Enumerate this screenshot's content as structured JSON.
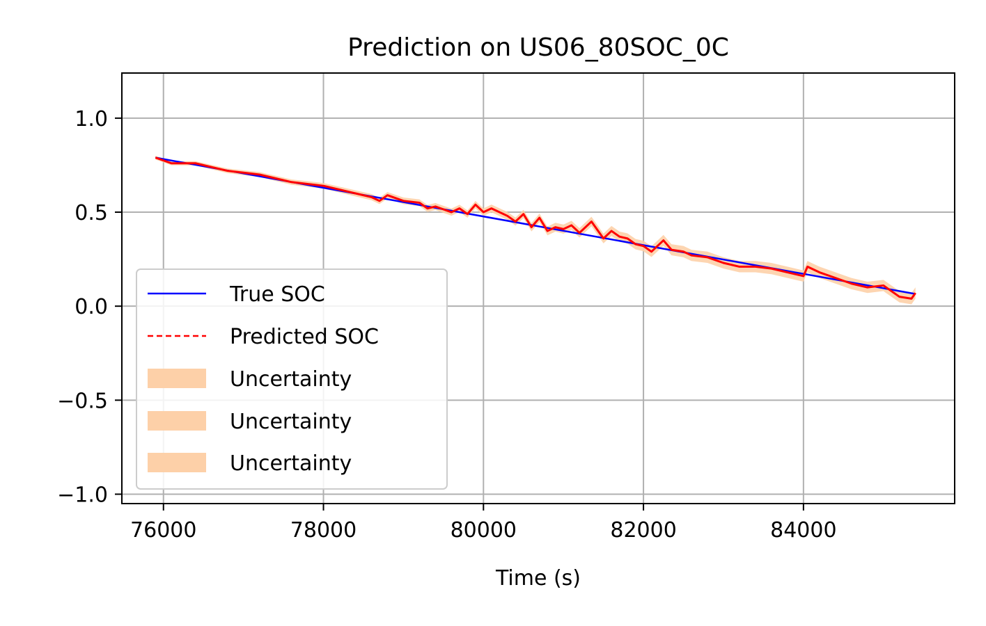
{
  "chart_data": {
    "type": "line",
    "title": "Prediction on US06_80SOC_0C",
    "xlabel": "Time (s)",
    "ylabel": "",
    "xlim": [
      75480,
      85890
    ],
    "ylim": [
      -1.05,
      1.24
    ],
    "xticks": [
      76000,
      78000,
      80000,
      82000,
      84000
    ],
    "xtick_labels": [
      "76000",
      "78000",
      "80000",
      "82000",
      "84000"
    ],
    "yticks": [
      1.0,
      0.5,
      0.0,
      -0.5,
      -1.0
    ],
    "ytick_labels": [
      "1.0",
      "0.5",
      "0.0",
      "−0.5",
      "−1.0"
    ],
    "grid": true,
    "legend_position": "lower-left",
    "series": [
      {
        "name": "True SOC",
        "style": "solid",
        "color": "#0000ff",
        "x": [
          75900,
          85400
        ],
        "y": [
          0.79,
          0.065
        ]
      },
      {
        "name": "Predicted SOC",
        "style": "dashed",
        "color": "#ff0000",
        "x": [
          75900,
          76100,
          76300,
          76400,
          76600,
          76800,
          77000,
          77200,
          77400,
          77600,
          77800,
          78000,
          78200,
          78400,
          78600,
          78700,
          78800,
          79000,
          79200,
          79300,
          79400,
          79600,
          79700,
          79800,
          79900,
          80000,
          80100,
          80300,
          80400,
          80500,
          80600,
          80700,
          80800,
          80900,
          81000,
          81100,
          81200,
          81350,
          81500,
          81600,
          81700,
          81800,
          81900,
          82000,
          82100,
          82250,
          82350,
          82500,
          82600,
          82800,
          83000,
          83200,
          83400,
          83600,
          83800,
          84000,
          84050,
          84200,
          84400,
          84600,
          84800,
          85000,
          85200,
          85350,
          85400
        ],
        "y": [
          0.79,
          0.76,
          0.76,
          0.76,
          0.74,
          0.72,
          0.71,
          0.7,
          0.68,
          0.66,
          0.65,
          0.64,
          0.62,
          0.6,
          0.58,
          0.56,
          0.59,
          0.56,
          0.55,
          0.52,
          0.53,
          0.5,
          0.52,
          0.49,
          0.54,
          0.5,
          0.52,
          0.48,
          0.45,
          0.49,
          0.42,
          0.47,
          0.4,
          0.42,
          0.41,
          0.43,
          0.39,
          0.45,
          0.36,
          0.4,
          0.37,
          0.36,
          0.33,
          0.32,
          0.29,
          0.35,
          0.3,
          0.29,
          0.27,
          0.26,
          0.23,
          0.21,
          0.21,
          0.2,
          0.18,
          0.16,
          0.21,
          0.18,
          0.15,
          0.12,
          0.1,
          0.11,
          0.05,
          0.04,
          0.07
        ]
      },
      {
        "name": "Uncertainty",
        "style": "band",
        "color": "#fdd0a8",
        "x": [
          75900,
          80000,
          82500,
          85000,
          85400
        ],
        "half_width": [
          0.01,
          0.02,
          0.03,
          0.03,
          0.03
        ]
      },
      {
        "name": "Uncertainty",
        "style": "band",
        "color": "#fdd0a8"
      },
      {
        "name": "Uncertainty",
        "style": "band",
        "color": "#fdd0a8"
      }
    ]
  }
}
